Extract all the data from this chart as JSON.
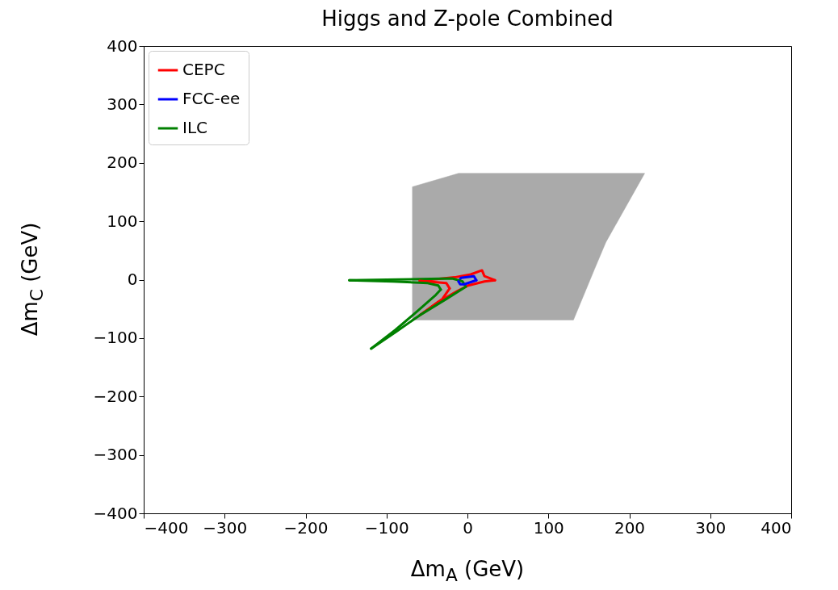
{
  "chart_data": {
    "type": "line",
    "title": "Higgs and Z-pole Combined",
    "xlabel": "Δm$_{A}$ (GeV)",
    "ylabel": "Δm$_{C}$ (GeV)",
    "xlim": [
      -400,
      400
    ],
    "ylim": [
      -400,
      400
    ],
    "xticks": [
      -400,
      -300,
      -200,
      -100,
      0,
      100,
      200,
      300,
      400
    ],
    "yticks": [
      -400,
      -300,
      -200,
      -100,
      0,
      100,
      200,
      300,
      400
    ],
    "grid": false,
    "legend": "top left",
    "marker": "none",
    "line_style": "solid",
    "series": [
      {
        "type": "area",
        "color": "#aaaaaa",
        "x": [
          -68,
          -11,
          219,
          171,
          157,
          131,
          -68
        ],
        "values": [
          159,
          182,
          182,
          64,
          18,
          -69,
          -69
        ]
      },
      {
        "name": "CEPC",
        "color": "#ff0000",
        "x": [
          -59,
          -16,
          4,
          18,
          21,
          34
        ],
        "values": [
          -2,
          4,
          9,
          16,
          6,
          -1
        ]
      },
      {
        "name": "FCC-ee",
        "color": "#0000ff",
        "x": [
          -11,
          -8,
          8,
          11
        ],
        "values": [
          -3,
          3,
          6,
          -1
        ]
      },
      {
        "name": "ILC",
        "color": "#008000",
        "x": [
          -146,
          -19,
          -6,
          -2
        ],
        "values": [
          -1,
          2,
          -3,
          -12
        ]
      },
      {
        "color": "#ff0000",
        "x": [
          -59,
          -26,
          -22
        ],
        "values": [
          -2,
          -6,
          -15
        ]
      },
      {
        "color": "#ff0000",
        "x": [
          -59,
          -31,
          -22
        ],
        "values": [
          -61,
          -33,
          -15
        ]
      },
      {
        "color": "#ff0000",
        "x": [
          -59,
          -36,
          -12,
          1,
          21,
          34
        ],
        "values": [
          -61,
          -38,
          -19,
          -10,
          -3,
          -1
        ]
      },
      {
        "color": "#0000ff",
        "x": [
          -11,
          -9,
          -4,
          11
        ],
        "values": [
          -3,
          -8,
          -8,
          -1
        ]
      },
      {
        "color": "#008000",
        "x": [
          -119,
          -87,
          -59,
          -26,
          -2
        ],
        "values": [
          -118,
          -88,
          -61,
          -33,
          -12
        ]
      },
      {
        "color": "#008000",
        "x": [
          -119,
          -89,
          -62,
          -39,
          -33
        ],
        "values": [
          -118,
          -86,
          -54,
          -26,
          -17
        ]
      },
      {
        "color": "#008000",
        "x": [
          -146,
          -92,
          -49,
          -36,
          -33
        ],
        "values": [
          -1,
          -3,
          -6,
          -10,
          -17
        ]
      }
    ]
  }
}
